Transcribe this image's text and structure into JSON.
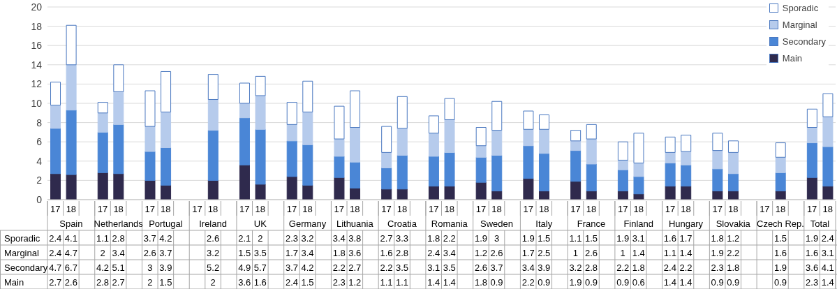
{
  "chart_data": {
    "type": "bar",
    "stacked": true,
    "categories": [
      "17",
      "18",
      null,
      "17",
      "18",
      null,
      "17",
      "18",
      null,
      "17",
      "18",
      null,
      "17",
      "18",
      null,
      "17",
      "18",
      null,
      "17",
      "18",
      null,
      "17",
      "18",
      null,
      "17",
      "18",
      null,
      "17",
      "18",
      null,
      "17",
      "18",
      null,
      "17",
      "18",
      null,
      "17",
      "18",
      null,
      "17",
      "18",
      null,
      "17",
      "18",
      null,
      "17",
      "18",
      null,
      "17",
      "18"
    ],
    "annotations": [
      "Spain",
      "Netherlands",
      "Portugal",
      "Ireland",
      "UK",
      "Germany",
      "Lithuania",
      "Croatia",
      "Romania",
      "Sweden",
      "Italy",
      "France",
      "Finland",
      "Hungary",
      "Slovakia",
      "Czech Rep.",
      "Total"
    ],
    "series": [
      {
        "name": "Main",
        "color": "#2f2a4d",
        "values": [
          2.7,
          2.6,
          null,
          2.8,
          2.7,
          null,
          2,
          1.5,
          null,
          null,
          2,
          null,
          3.6,
          1.6,
          null,
          2.4,
          1.5,
          null,
          2.3,
          1.2,
          null,
          1.1,
          1.1,
          null,
          1.4,
          1.4,
          null,
          1.8,
          0.9,
          null,
          2.2,
          0.9,
          null,
          1.9,
          0.9,
          null,
          0.9,
          0.6,
          null,
          1.4,
          1.4,
          null,
          0.9,
          0.9,
          null,
          null,
          0.9,
          null,
          2.3,
          1.4
        ]
      },
      {
        "name": "Secondary",
        "color": "#4a86d6",
        "values": [
          4.7,
          6.7,
          null,
          4.2,
          5.1,
          null,
          3,
          3.9,
          null,
          null,
          5.2,
          null,
          4.9,
          5.7,
          null,
          3.7,
          4.2,
          null,
          2.2,
          2.7,
          null,
          2.2,
          3.5,
          null,
          3.1,
          3.5,
          null,
          2.6,
          3.7,
          null,
          3.4,
          3.9,
          null,
          3.2,
          2.8,
          null,
          2.2,
          1.8,
          null,
          2.4,
          2.2,
          null,
          2.3,
          1.8,
          null,
          null,
          1.9,
          null,
          3.6,
          4.1
        ]
      },
      {
        "name": "Marginal",
        "color": "#b6cbec",
        "values": [
          2.4,
          4.7,
          null,
          2,
          3.4,
          null,
          2.6,
          3.7,
          null,
          null,
          3.2,
          null,
          1.5,
          3.5,
          null,
          1.7,
          3.4,
          null,
          1.8,
          3.6,
          null,
          1.6,
          2.8,
          null,
          2.4,
          3.4,
          null,
          1.2,
          2.6,
          null,
          1.7,
          2.5,
          null,
          1,
          2.6,
          null,
          1,
          1.4,
          null,
          1.1,
          1.4,
          null,
          1.9,
          2.2,
          null,
          null,
          1.6,
          null,
          1.6,
          3.1
        ]
      },
      {
        "name": "Sporadic",
        "color": "#ffffff",
        "values": [
          2.4,
          4.1,
          null,
          1.1,
          2.8,
          null,
          3.7,
          4.2,
          null,
          null,
          2.6,
          null,
          2.1,
          2,
          null,
          2.3,
          3.2,
          null,
          3.4,
          3.8,
          null,
          2.7,
          3.3,
          null,
          1.8,
          2.2,
          null,
          1.9,
          3,
          null,
          1.9,
          1.5,
          null,
          1.1,
          1.5,
          null,
          1.9,
          3.1,
          null,
          1.6,
          1.7,
          null,
          1.8,
          1.2,
          null,
          null,
          1.5,
          null,
          1.9,
          2.4
        ]
      }
    ],
    "ylim": [
      0,
      20
    ],
    "yticks": [
      0,
      2,
      4,
      6,
      8,
      10,
      12,
      14,
      16,
      18,
      20
    ],
    "grid": "y",
    "legend": "top right",
    "data_labels": true
  }
}
